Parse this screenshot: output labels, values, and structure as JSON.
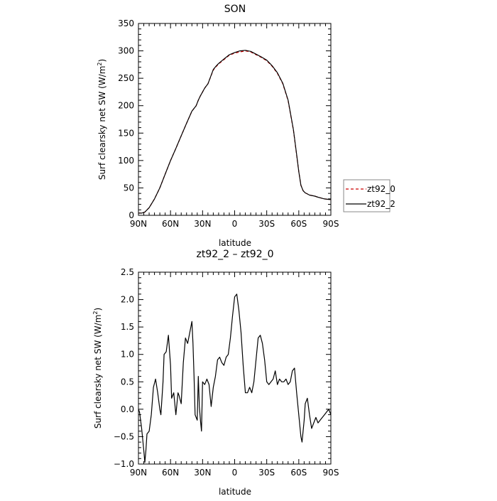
{
  "chart_data": [
    {
      "type": "line",
      "title": "SON",
      "xlabel": "latitude",
      "ylabel": "Surf clearsky net SW (W/m",
      "ylabel_sup": "2",
      "ylabel_close": ")",
      "xlim": [
        90,
        -90
      ],
      "ylim": [
        0,
        350
      ],
      "x_ticks": [
        90,
        60,
        30,
        0,
        -30,
        -60,
        -90
      ],
      "x_tick_labels": [
        "90N",
        "60N",
        "30N",
        "0",
        "30S",
        "60S",
        "90S"
      ],
      "y_ticks": [
        0,
        50,
        100,
        150,
        200,
        250,
        300,
        350
      ],
      "y_tick_labels": [
        "0",
        "50",
        "100",
        "150",
        "200",
        "250",
        "300",
        "350"
      ],
      "legend": {
        "placement": "right-middle",
        "entries": [
          "zt92_0",
          "zt92_2"
        ]
      },
      "series": [
        {
          "name": "zt92_0",
          "color": "#cc0000",
          "dash": "dashed",
          "x": [
            90,
            87,
            84,
            80,
            75,
            70,
            65,
            60,
            55,
            50,
            45,
            40,
            36,
            34,
            32,
            30,
            28,
            25,
            20,
            17,
            15,
            10,
            5,
            0,
            -5,
            -10,
            -15,
            -20,
            -25,
            -30,
            -35,
            -40,
            -45,
            -50,
            -55,
            -58,
            -60,
            -62,
            -64,
            -66,
            -68,
            -70,
            -75,
            -78,
            -80,
            -84,
            -88,
            -90
          ],
          "y": [
            4,
            4,
            6,
            14,
            30,
            50,
            75,
            100,
            122,
            145,
            168,
            190,
            200,
            210,
            218,
            225,
            232,
            240,
            265,
            272,
            276,
            284,
            292,
            296,
            298,
            300,
            298,
            293,
            288,
            282,
            272,
            259,
            240,
            209,
            155,
            110,
            80,
            55,
            45,
            41,
            39,
            37,
            35,
            33,
            32,
            30,
            29,
            29
          ]
        },
        {
          "name": "zt92_2",
          "color": "#000000",
          "dash": "solid",
          "x": [
            90,
            87,
            84,
            80,
            75,
            70,
            65,
            60,
            55,
            50,
            45,
            40,
            36,
            34,
            32,
            30,
            28,
            25,
            20,
            17,
            15,
            10,
            5,
            0,
            -5,
            -10,
            -15,
            -20,
            -25,
            -30,
            -35,
            -40,
            -45,
            -50,
            -55,
            -58,
            -60,
            -62,
            -64,
            -66,
            -68,
            -70,
            -75,
            -78,
            -80,
            -84,
            -88,
            -90
          ],
          "y": [
            4,
            4,
            6,
            14,
            30,
            50,
            75,
            100,
            122,
            145,
            168,
            190,
            200,
            210,
            218,
            225,
            232,
            240,
            266,
            273,
            277,
            285,
            293,
            297,
            300,
            301,
            299,
            294,
            289,
            283,
            273,
            260,
            241,
            210,
            156,
            111,
            80,
            55,
            45,
            41,
            39,
            37,
            35,
            33,
            32,
            30,
            29,
            29
          ]
        }
      ]
    },
    {
      "type": "line",
      "title": "zt92_2 – zt92_0",
      "xlabel": "latitude",
      "ylabel": "Surf clearsky net SW (W/m",
      "ylabel_sup": "2",
      "ylabel_close": ")",
      "xlim": [
        90,
        -90
      ],
      "ylim": [
        -1.0,
        2.5
      ],
      "x_ticks": [
        90,
        60,
        30,
        0,
        -30,
        -60,
        -90
      ],
      "x_tick_labels": [
        "90N",
        "60N",
        "30N",
        "0",
        "30S",
        "60S",
        "90S"
      ],
      "y_ticks": [
        -1.0,
        -0.5,
        0.0,
        0.5,
        1.0,
        1.5,
        2.0,
        2.5
      ],
      "y_tick_labels": [
        "−1.0",
        "−0.5",
        "0.0",
        "0.5",
        "1.0",
        "1.5",
        "2.0",
        "2.5"
      ],
      "series": [
        {
          "color": "#000000",
          "dash": "solid",
          "x": [
            90,
            89,
            87,
            85,
            84,
            83,
            82,
            80,
            78,
            76,
            74,
            72,
            70,
            69,
            67,
            66,
            64,
            62,
            60,
            59,
            57,
            55,
            53,
            52,
            50,
            48,
            46,
            44,
            42,
            40,
            39,
            38,
            37,
            35,
            34,
            33,
            32,
            31,
            30,
            28,
            27,
            26,
            24,
            22,
            20,
            18,
            16,
            14,
            12,
            10,
            8,
            6,
            4,
            2,
            0,
            -2,
            -4,
            -6,
            -8,
            -10,
            -12,
            -14,
            -16,
            -18,
            -20,
            -22,
            -24,
            -26,
            -28,
            -30,
            -32,
            -34,
            -36,
            -38,
            -40,
            -42,
            -44,
            -46,
            -48,
            -50,
            -52,
            -54,
            -56,
            -58,
            -60,
            -62,
            -63,
            -64,
            -65,
            -66,
            -68,
            -70,
            -72,
            -74,
            -76,
            -78,
            -80,
            -82,
            -84,
            -86,
            -88,
            -90
          ],
          "y": [
            0.0,
            -0.05,
            -0.35,
            -0.75,
            -0.97,
            -0.75,
            -0.45,
            -0.4,
            -0.1,
            0.4,
            0.55,
            0.3,
            0.0,
            -0.1,
            0.5,
            1.0,
            1.05,
            1.35,
            0.8,
            0.2,
            0.3,
            -0.1,
            0.3,
            0.25,
            0.1,
            0.85,
            1.3,
            1.2,
            1.4,
            1.6,
            1.2,
            0.6,
            -0.1,
            -0.2,
            0.6,
            0.05,
            -0.2,
            -0.4,
            0.5,
            0.45,
            0.5,
            0.55,
            0.45,
            0.05,
            0.4,
            0.6,
            0.9,
            0.95,
            0.85,
            0.8,
            0.95,
            1.0,
            1.3,
            1.7,
            2.05,
            2.1,
            1.8,
            1.4,
            0.8,
            0.3,
            0.3,
            0.4,
            0.3,
            0.5,
            0.9,
            1.3,
            1.35,
            1.2,
            0.9,
            0.5,
            0.45,
            0.5,
            0.55,
            0.7,
            0.45,
            0.55,
            0.5,
            0.5,
            0.55,
            0.45,
            0.5,
            0.7,
            0.75,
            0.3,
            -0.1,
            -0.5,
            -0.6,
            -0.4,
            -0.2,
            0.1,
            0.2,
            -0.1,
            -0.35,
            -0.25,
            -0.15,
            -0.25,
            -0.2,
            -0.15,
            -0.1,
            -0.05,
            0.0,
            -0.1
          ]
        }
      ]
    }
  ]
}
